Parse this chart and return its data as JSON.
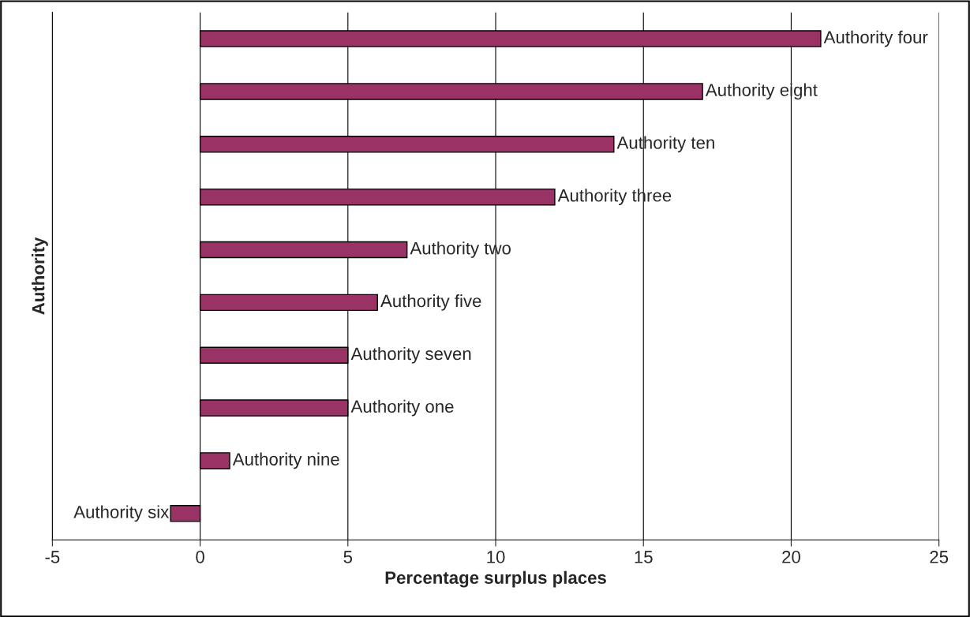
{
  "chart_data": {
    "type": "bar",
    "orientation": "horizontal",
    "categories": [
      "Authority four",
      "Authority eight",
      "Authority ten",
      "Authority three",
      "Authority two",
      "Authority five",
      "Authority seven",
      "Authority one",
      "Authority nine",
      "Authority six"
    ],
    "values": [
      21,
      17,
      14,
      12,
      7,
      6,
      5,
      5,
      1,
      -1
    ],
    "color": "#993366",
    "xlabel": "Percentage surplus places",
    "ylabel": "Authority",
    "xlim": [
      -5,
      25
    ],
    "xticks": [
      -5,
      0,
      5,
      10,
      15,
      20,
      25
    ],
    "grid": "x",
    "tick_labels": "x"
  }
}
